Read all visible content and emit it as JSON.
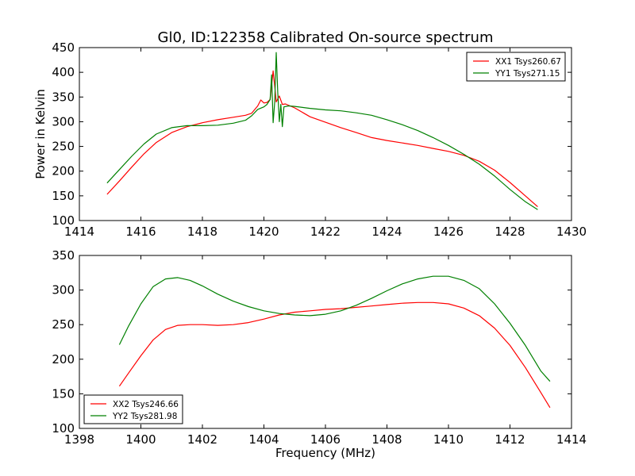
{
  "title": "Gl0, ID:122358 Calibrated On-source spectrum",
  "colors": {
    "red": "#ff0000",
    "green": "#008000"
  },
  "chart_data": [
    {
      "type": "line",
      "ylabel": "Power in Kelvin",
      "xlabel": "",
      "xlim": [
        1414,
        1430
      ],
      "ylim": [
        100,
        450
      ],
      "xticks": [
        "1414",
        "1416",
        "1418",
        "1420",
        "1422",
        "1424",
        "1426",
        "1428",
        "1430"
      ],
      "yticks": [
        "100",
        "150",
        "200",
        "250",
        "300",
        "350",
        "400",
        "450"
      ],
      "legend_position": "top-right",
      "series": [
        {
          "name": "XX1 Tsys260.67",
          "color": "#ff0000",
          "points": [
            [
              1414.9,
              153
            ],
            [
              1415.3,
              180
            ],
            [
              1415.7,
              208
            ],
            [
              1416.1,
              235
            ],
            [
              1416.5,
              258
            ],
            [
              1417.0,
              278
            ],
            [
              1417.5,
              290
            ],
            [
              1418.0,
              298
            ],
            [
              1418.5,
              304
            ],
            [
              1419.0,
              309
            ],
            [
              1419.4,
              313
            ],
            [
              1419.6,
              317
            ],
            [
              1419.8,
              332
            ],
            [
              1419.9,
              344
            ],
            [
              1420.0,
              338
            ],
            [
              1420.1,
              339
            ],
            [
              1420.2,
              345
            ],
            [
              1420.3,
              403
            ],
            [
              1420.35,
              372
            ],
            [
              1420.4,
              340
            ],
            [
              1420.5,
              352
            ],
            [
              1420.6,
              335
            ],
            [
              1420.7,
              336
            ],
            [
              1421.0,
              328
            ],
            [
              1421.5,
              310
            ],
            [
              1422.0,
              299
            ],
            [
              1422.5,
              288
            ],
            [
              1423.0,
              278
            ],
            [
              1423.5,
              268
            ],
            [
              1424.0,
              262
            ],
            [
              1424.5,
              257
            ],
            [
              1425.0,
              252
            ],
            [
              1425.5,
              246
            ],
            [
              1426.0,
              240
            ],
            [
              1426.5,
              232
            ],
            [
              1427.0,
              220
            ],
            [
              1427.5,
              202
            ],
            [
              1428.0,
              177
            ],
            [
              1428.5,
              150
            ],
            [
              1428.9,
              128
            ]
          ]
        },
        {
          "name": "YY1 Tsys271.15",
          "color": "#008000",
          "points": [
            [
              1414.9,
              176
            ],
            [
              1415.3,
              203
            ],
            [
              1415.7,
              230
            ],
            [
              1416.1,
              255
            ],
            [
              1416.5,
              275
            ],
            [
              1417.0,
              288
            ],
            [
              1417.5,
              292
            ],
            [
              1418.0,
              292
            ],
            [
              1418.5,
              293
            ],
            [
              1419.0,
              297
            ],
            [
              1419.4,
              303
            ],
            [
              1419.6,
              312
            ],
            [
              1419.8,
              325
            ],
            [
              1420.0,
              330
            ],
            [
              1420.1,
              335
            ],
            [
              1420.2,
              345
            ],
            [
              1420.25,
              395
            ],
            [
              1420.3,
              298
            ],
            [
              1420.35,
              340
            ],
            [
              1420.4,
              440
            ],
            [
              1420.45,
              360
            ],
            [
              1420.5,
              300
            ],
            [
              1420.55,
              335
            ],
            [
              1420.6,
              290
            ],
            [
              1420.65,
              330
            ],
            [
              1420.8,
              332
            ],
            [
              1421.0,
              331
            ],
            [
              1421.5,
              327
            ],
            [
              1422.0,
              324
            ],
            [
              1422.5,
              322
            ],
            [
              1423.0,
              318
            ],
            [
              1423.5,
              313
            ],
            [
              1424.0,
              304
            ],
            [
              1424.5,
              294
            ],
            [
              1425.0,
              282
            ],
            [
              1425.5,
              268
            ],
            [
              1426.0,
              252
            ],
            [
              1426.5,
              234
            ],
            [
              1427.0,
              214
            ],
            [
              1427.5,
              190
            ],
            [
              1428.0,
              163
            ],
            [
              1428.5,
              138
            ],
            [
              1428.9,
              122
            ]
          ]
        }
      ]
    },
    {
      "type": "line",
      "ylabel": "",
      "xlabel": "Frequency (MHz)",
      "xlim": [
        1398,
        1414
      ],
      "ylim": [
        100,
        350
      ],
      "xticks": [
        "1398",
        "1400",
        "1402",
        "1404",
        "1406",
        "1408",
        "1410",
        "1412",
        "1414"
      ],
      "yticks": [
        "100",
        "150",
        "200",
        "250",
        "300",
        "350"
      ],
      "legend_position": "bottom-left",
      "series": [
        {
          "name": "XX2 Tsys246.66",
          "color": "#ff0000",
          "points": [
            [
              1399.3,
              161
            ],
            [
              1399.6,
              180
            ],
            [
              1400.0,
              205
            ],
            [
              1400.4,
              228
            ],
            [
              1400.8,
              243
            ],
            [
              1401.2,
              249
            ],
            [
              1401.6,
              250
            ],
            [
              1402.0,
              250
            ],
            [
              1402.5,
              249
            ],
            [
              1403.0,
              250
            ],
            [
              1403.5,
              253
            ],
            [
              1404.0,
              258
            ],
            [
              1404.5,
              264
            ],
            [
              1405.0,
              268
            ],
            [
              1405.5,
              270
            ],
            [
              1406.0,
              272
            ],
            [
              1406.5,
              273
            ],
            [
              1407.0,
              275
            ],
            [
              1407.5,
              277
            ],
            [
              1408.0,
              279
            ],
            [
              1408.5,
              281
            ],
            [
              1409.0,
              282
            ],
            [
              1409.5,
              282
            ],
            [
              1410.0,
              280
            ],
            [
              1410.5,
              274
            ],
            [
              1411.0,
              263
            ],
            [
              1411.5,
              245
            ],
            [
              1412.0,
              220
            ],
            [
              1412.5,
              188
            ],
            [
              1413.0,
              152
            ],
            [
              1413.3,
              130
            ]
          ]
        },
        {
          "name": "YY2 Tsys281.98",
          "color": "#008000",
          "points": [
            [
              1399.3,
              221
            ],
            [
              1399.6,
              248
            ],
            [
              1400.0,
              280
            ],
            [
              1400.4,
              305
            ],
            [
              1400.8,
              316
            ],
            [
              1401.2,
              318
            ],
            [
              1401.6,
              314
            ],
            [
              1402.0,
              306
            ],
            [
              1402.5,
              294
            ],
            [
              1403.0,
              284
            ],
            [
              1403.5,
              276
            ],
            [
              1404.0,
              270
            ],
            [
              1404.5,
              266
            ],
            [
              1405.0,
              264
            ],
            [
              1405.5,
              263
            ],
            [
              1406.0,
              265
            ],
            [
              1406.5,
              270
            ],
            [
              1407.0,
              278
            ],
            [
              1407.5,
              288
            ],
            [
              1408.0,
              299
            ],
            [
              1408.5,
              309
            ],
            [
              1409.0,
              316
            ],
            [
              1409.5,
              320
            ],
            [
              1410.0,
              320
            ],
            [
              1410.5,
              314
            ],
            [
              1411.0,
              302
            ],
            [
              1411.5,
              280
            ],
            [
              1412.0,
              252
            ],
            [
              1412.5,
              220
            ],
            [
              1413.0,
              183
            ],
            [
              1413.3,
              168
            ]
          ]
        }
      ]
    }
  ]
}
